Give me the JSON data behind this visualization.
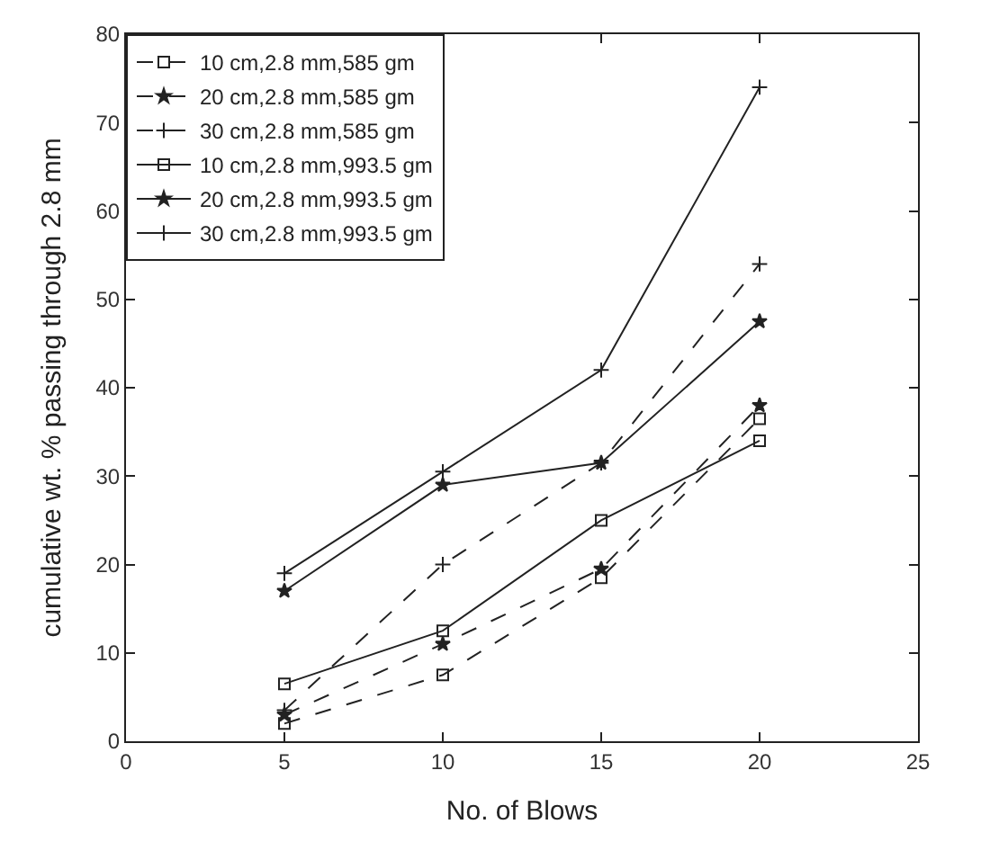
{
  "chart_data": {
    "type": "line",
    "xlabel": "No. of Blows",
    "ylabel": "cumulative wt. % passing through 2.8 mm",
    "x": [
      5,
      10,
      15,
      20
    ],
    "series": [
      {
        "name": "10 cm,2.8 mm,585 gm",
        "color": "#222222",
        "values": [
          2,
          7.5,
          18.5,
          36.5
        ],
        "marker": "square",
        "line_style": "dashed"
      },
      {
        "name": "20 cm,2.8 mm,585 gm",
        "color": "#222222",
        "values": [
          3,
          11,
          19.5,
          38
        ],
        "marker": "star",
        "line_style": "dashed"
      },
      {
        "name": "30 cm,2.8 mm,585 gm",
        "color": "#222222",
        "values": [
          3.5,
          20,
          31.5,
          54
        ],
        "marker": "cross",
        "line_style": "dashed"
      },
      {
        "name": "10 cm,2.8 mm,993.5 gm",
        "color": "#222222",
        "values": [
          6.5,
          12.5,
          25,
          34
        ],
        "marker": "square",
        "line_style": "solid"
      },
      {
        "name": "20 cm,2.8 mm,993.5 gm",
        "color": "#222222",
        "values": [
          17,
          29,
          31.5,
          47.5
        ],
        "marker": "star",
        "line_style": "solid"
      },
      {
        "name": "30 cm,2.8 mm,993.5 gm",
        "color": "#222222",
        "values": [
          19,
          30.5,
          42,
          74
        ],
        "marker": "cross",
        "line_style": "solid"
      }
    ],
    "xlim": [
      0,
      25
    ],
    "xticks": [
      0,
      5,
      10,
      15,
      20,
      25
    ],
    "ylim": [
      0,
      80
    ],
    "yticks": [
      0,
      10,
      20,
      30,
      40,
      50,
      60,
      70,
      80
    ],
    "legend": "top left"
  }
}
